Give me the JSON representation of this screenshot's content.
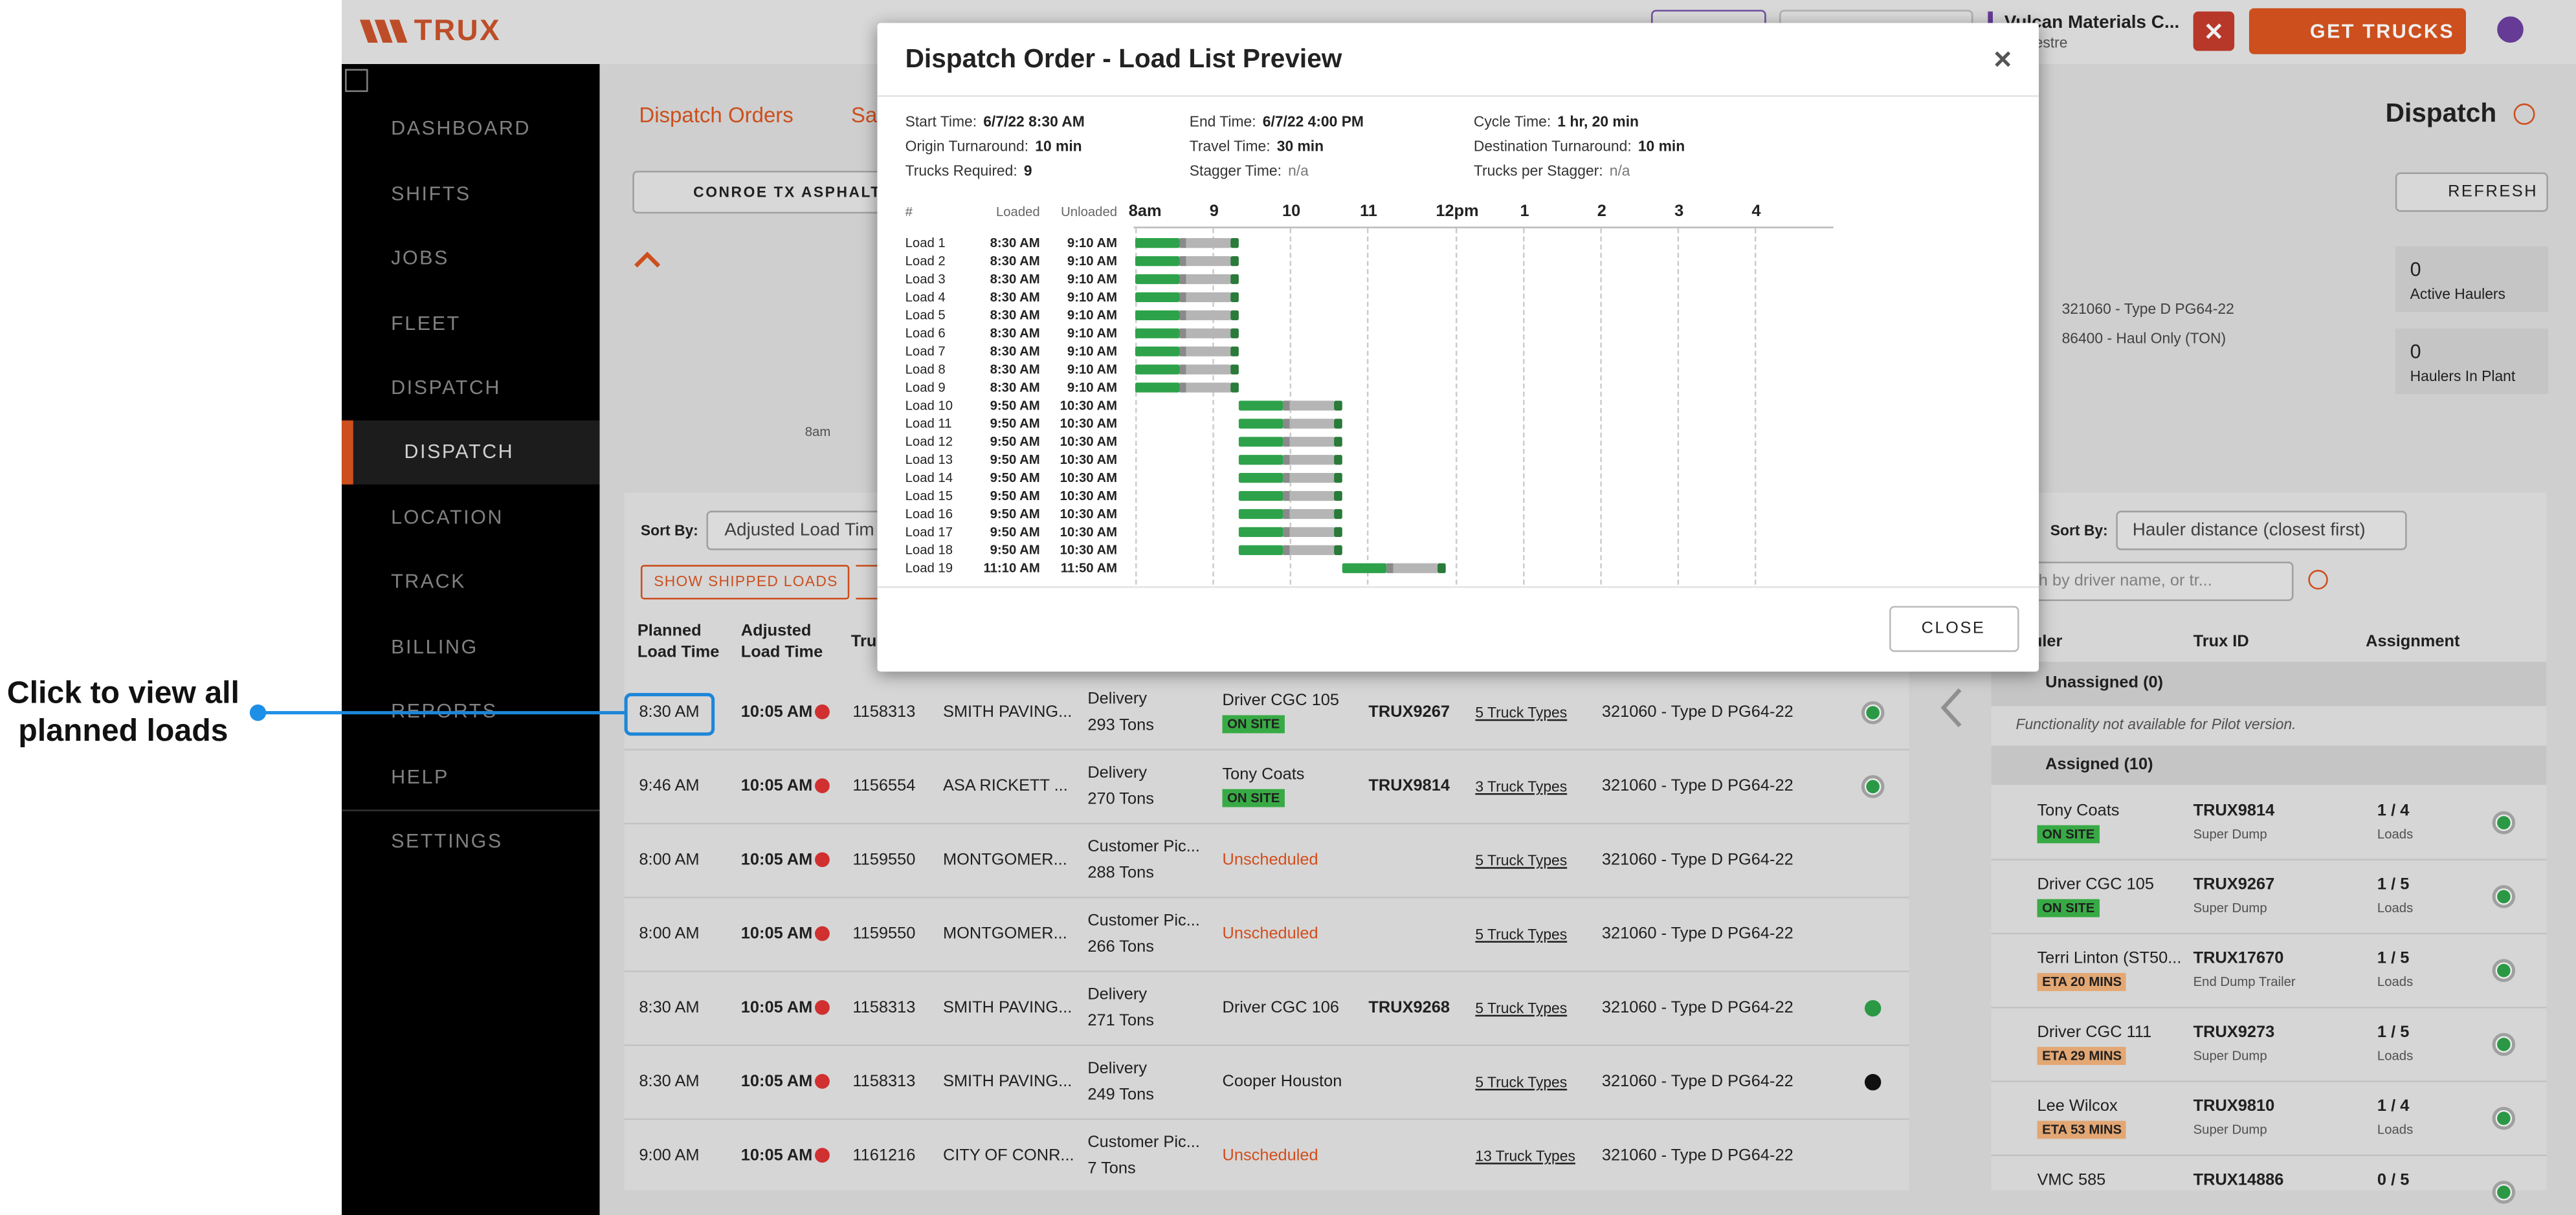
{
  "annotation": {
    "lines": [
      "Click to view all",
      "planned loads"
    ]
  },
  "header": {
    "logo": "TRUX",
    "company": "Vulcan Materials C...",
    "user": "Mestre",
    "get_trucks": "GET TRUCKS"
  },
  "sidebar": {
    "items": [
      "DASHBOARD",
      "SHIFTS",
      "JOBS",
      "FLEET",
      "DISPATCH",
      "DISPATCH",
      "LOCATION",
      "TRACK",
      "BILLING",
      "REPORTS",
      "HELP",
      "SETTINGS"
    ],
    "active": 5
  },
  "page": {
    "tabs": [
      "Dispatch Orders",
      "Sa"
    ],
    "plant": "CONROE TX ASPHALT",
    "timeline_label": "8am",
    "title": "Dispatch",
    "refresh": "REFRESH",
    "stats": [
      {
        "value": "0",
        "label": "Active Haulers"
      },
      {
        "value": "0",
        "label": "Haulers In Plant"
      }
    ],
    "materials": [
      "321060 - Type D PG64-22",
      "86400 - Haul Only (TON)"
    ]
  },
  "orders": {
    "sort_label": "Sort By:",
    "sort_value": "Adjusted Load Tim",
    "show_shipped": "SHOW SHIPPED LOADS",
    "headers": [
      "Planned Load Time",
      "Adjusted Load Time",
      "Tru"
    ],
    "rows": [
      {
        "planned": "8:30 AM",
        "adjusted": "10:05 AM",
        "order": "1158313",
        "customer": "SMITH PAVING...",
        "type": "Delivery",
        "tons": "293 Tons",
        "driver": "Driver CGC 105",
        "status": "ON SITE",
        "truck": "TRUX9267",
        "truck_types": "5 Truck Types",
        "material": "321060 - Type D PG64-22",
        "dot": "ring"
      },
      {
        "planned": "9:46 AM",
        "adjusted": "10:05 AM",
        "order": "1156554",
        "customer": "ASA RICKETT ...",
        "type": "Delivery",
        "tons": "270 Tons",
        "driver": "Tony Coats",
        "status": "ON SITE",
        "truck": "TRUX9814",
        "truck_types": "3 Truck Types",
        "material": "321060 - Type D PG64-22",
        "dot": "ring"
      },
      {
        "planned": "8:00 AM",
        "adjusted": "10:05 AM",
        "order": "1159550",
        "customer": "MONTGOMER...",
        "type": "Customer Pic...",
        "tons": "288 Tons",
        "driver": "Unscheduled",
        "driver_color": "#e0531f",
        "truck_types": "5 Truck Types",
        "material": "321060 - Type D PG64-22"
      },
      {
        "planned": "8:00 AM",
        "adjusted": "10:05 AM",
        "order": "1159550",
        "customer": "MONTGOMER...",
        "type": "Customer Pic...",
        "tons": "266 Tons",
        "driver": "Unscheduled",
        "driver_color": "#e0531f",
        "truck_types": "5 Truck Types",
        "material": "321060 - Type D PG64-22"
      },
      {
        "planned": "8:30 AM",
        "adjusted": "10:05 AM",
        "order": "1158313",
        "customer": "SMITH PAVING...",
        "type": "Delivery",
        "tons": "271 Tons",
        "driver": "Driver CGC 106",
        "truck": "TRUX9268",
        "truck_types": "5 Truck Types",
        "material": "321060 - Type D PG64-22",
        "dot": "#2ea24a"
      },
      {
        "planned": "8:30 AM",
        "adjusted": "10:05 AM",
        "order": "1158313",
        "customer": "SMITH PAVING...",
        "type": "Delivery",
        "tons": "249 Tons",
        "driver": "Cooper Houston",
        "truck_types": "5 Truck Types",
        "material": "321060 - Type D PG64-22",
        "dot": "#111111"
      },
      {
        "planned": "9:00 AM",
        "adjusted": "10:05 AM",
        "order": "1161216",
        "customer": "CITY OF CONR...",
        "type": "Customer Pic...",
        "tons": "7 Tons",
        "driver": "Unscheduled",
        "driver_color": "#e0531f",
        "truck_types": "13 Truck Types",
        "material": "321060 - Type D PG64-22"
      }
    ]
  },
  "haulers": {
    "sort_label": "Sort By:",
    "sort_value": "Hauler distance (closest first)",
    "search_placeholder": "arch by driver name, or tr...",
    "headers": [
      "uler",
      "Trux ID",
      "Assignment"
    ],
    "unassigned": "Unassigned (0)",
    "unassigned_note": "Functionality not available for Pilot version.",
    "assigned": "Assigned (10)",
    "rows": [
      {
        "name": "Tony Coats",
        "status": "ON SITE",
        "status_color": "#3cb54a",
        "trux": "TRUX9814",
        "truck_type": "Super Dump",
        "assignment": "1 / 4",
        "unit": "Loads"
      },
      {
        "name": "Driver CGC 105",
        "status": "ON SITE",
        "status_color": "#3cb54a",
        "trux": "TRUX9267",
        "truck_type": "Super Dump",
        "assignment": "1 / 5",
        "unit": "Loads"
      },
      {
        "name": "Terri Linton (ST50...",
        "status": "ETA 20 MINS",
        "status_color": "#f2b27c",
        "trux": "TRUX17670",
        "truck_type": "End Dump Trailer",
        "assignment": "1 / 5",
        "unit": "Loads"
      },
      {
        "name": "Driver CGC 111",
        "status": "ETA 29 MINS",
        "status_color": "#f2b27c",
        "trux": "TRUX9273",
        "truck_type": "Super Dump",
        "assignment": "1 / 5",
        "unit": "Loads"
      },
      {
        "name": "Lee Wilcox",
        "status": "ETA 53 MINS",
        "status_color": "#f2b27c",
        "trux": "TRUX9810",
        "truck_type": "Super Dump",
        "assignment": "1 / 4",
        "unit": "Loads"
      },
      {
        "name": "VMC 585",
        "trux": "TRUX14886",
        "assignment": "0 / 5"
      }
    ]
  },
  "modal": {
    "title": "Dispatch Order - Load List Preview",
    "fields": [
      {
        "label": "Start Time:",
        "value": "6/7/22 8:30 AM"
      },
      {
        "label": "End Time:",
        "value": "6/7/22 4:00 PM"
      },
      {
        "label": "Cycle Time:",
        "value": "1 hr, 20 min"
      },
      {
        "label": "Origin Turnaround:",
        "value": "10 min"
      },
      {
        "label": "Travel Time:",
        "value": "30 min"
      },
      {
        "label": "Destination Turnaround:",
        "value": "10 min"
      },
      {
        "label": "Trucks Required:",
        "value": "9"
      },
      {
        "label": "Stagger Time:",
        "value": "n/a"
      },
      {
        "label": "Trucks per Stagger:",
        "value": "n/a"
      }
    ],
    "columns": [
      "#",
      "Loaded",
      "Unloaded"
    ],
    "ticks": [
      "8am",
      "9",
      "10",
      "11",
      "12pm",
      "1",
      "2",
      "3",
      "4"
    ],
    "loads": [
      {
        "name": "Load 1",
        "loaded": "8:30 AM",
        "unloaded": "9:10 AM"
      },
      {
        "name": "Load 2",
        "loaded": "8:30 AM",
        "unloaded": "9:10 AM"
      },
      {
        "name": "Load 3",
        "loaded": "8:30 AM",
        "unloaded": "9:10 AM"
      },
      {
        "name": "Load 4",
        "loaded": "8:30 AM",
        "unloaded": "9:10 AM"
      },
      {
        "name": "Load 5",
        "loaded": "8:30 AM",
        "unloaded": "9:10 AM"
      },
      {
        "name": "Load 6",
        "loaded": "8:30 AM",
        "unloaded": "9:10 AM"
      },
      {
        "name": "Load 7",
        "loaded": "8:30 AM",
        "unloaded": "9:10 AM"
      },
      {
        "name": "Load 8",
        "loaded": "8:30 AM",
        "unloaded": "9:10 AM"
      },
      {
        "name": "Load 9",
        "loaded": "8:30 AM",
        "unloaded": "9:10 AM"
      },
      {
        "name": "Load 10",
        "loaded": "9:50 AM",
        "unloaded": "10:30 AM"
      },
      {
        "name": "Load 11",
        "loaded": "9:50 AM",
        "unloaded": "10:30 AM"
      },
      {
        "name": "Load 12",
        "loaded": "9:50 AM",
        "unloaded": "10:30 AM"
      },
      {
        "name": "Load 13",
        "loaded": "9:50 AM",
        "unloaded": "10:30 AM"
      },
      {
        "name": "Load 14",
        "loaded": "9:50 AM",
        "unloaded": "10:30 AM"
      },
      {
        "name": "Load 15",
        "loaded": "9:50 AM",
        "unloaded": "10:30 AM"
      },
      {
        "name": "Load 16",
        "loaded": "9:50 AM",
        "unloaded": "10:30 AM"
      },
      {
        "name": "Load 17",
        "loaded": "9:50 AM",
        "unloaded": "10:30 AM"
      },
      {
        "name": "Load 18",
        "loaded": "9:50 AM",
        "unloaded": "10:30 AM"
      },
      {
        "name": "Load 19",
        "loaded": "11:10 AM",
        "unloaded": "11:50 AM"
      }
    ],
    "close": "CLOSE"
  }
}
